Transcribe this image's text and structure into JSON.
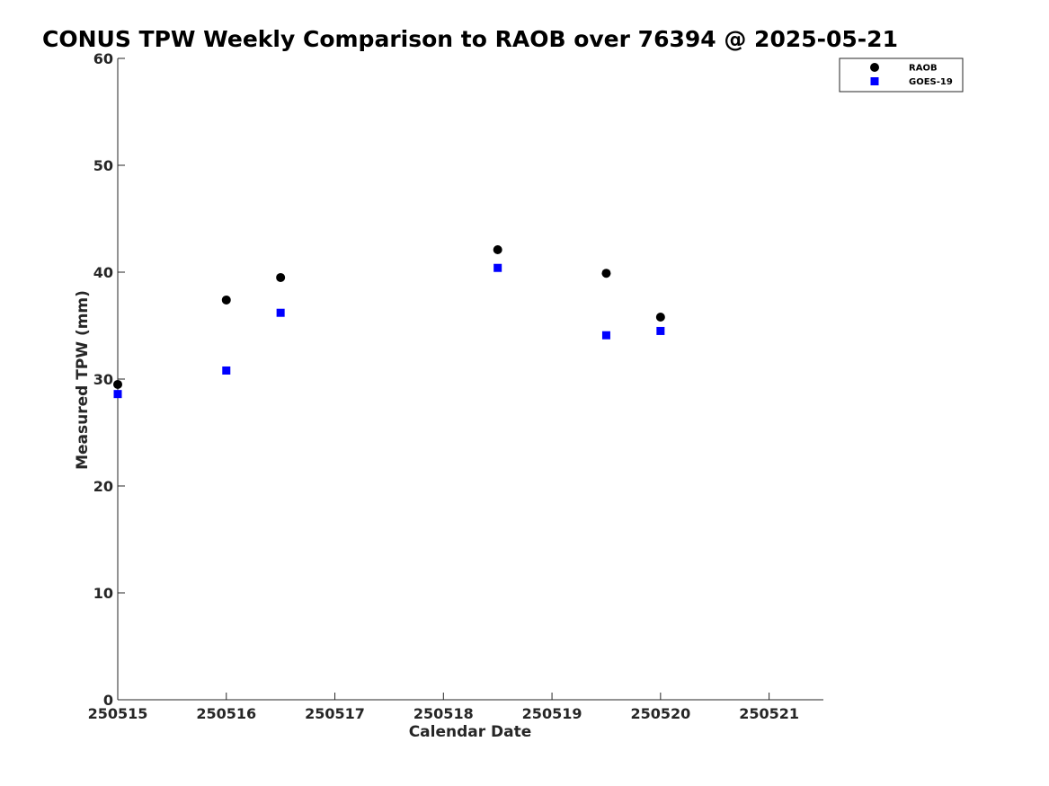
{
  "chart_data": {
    "type": "scatter",
    "title": "CONUS TPW Weekly Comparison to RAOB over 76394 @ 2025-05-21",
    "xlabel": "Calendar Date",
    "ylabel": "Measured TPW (mm)",
    "xlim": [
      250515,
      250521.5
    ],
    "ylim": [
      0,
      60
    ],
    "x_ticks": [
      250515,
      250516,
      250517,
      250518,
      250519,
      250520,
      250521
    ],
    "x_tick_labels": [
      "250515",
      "250516",
      "250517",
      "250518",
      "250519",
      "250520",
      "250521"
    ],
    "y_ticks": [
      0,
      10,
      20,
      30,
      40,
      50,
      60
    ],
    "y_tick_labels": [
      "0",
      "10",
      "20",
      "30",
      "40",
      "50",
      "60"
    ],
    "grid": false,
    "legend_position": "top-right",
    "series": [
      {
        "name": "RAOB",
        "marker": "circle",
        "color": "#000000",
        "points": [
          {
            "x": 250515.0,
            "y": 29.5
          },
          {
            "x": 250516.0,
            "y": 37.4
          },
          {
            "x": 250516.5,
            "y": 39.5
          },
          {
            "x": 250518.5,
            "y": 42.1
          },
          {
            "x": 250519.5,
            "y": 39.9
          },
          {
            "x": 250520.0,
            "y": 35.8
          }
        ]
      },
      {
        "name": "GOES-19",
        "marker": "square",
        "color": "#0000ff",
        "points": [
          {
            "x": 250515.0,
            "y": 28.6
          },
          {
            "x": 250516.0,
            "y": 30.8
          },
          {
            "x": 250516.5,
            "y": 36.2
          },
          {
            "x": 250518.5,
            "y": 40.4
          },
          {
            "x": 250519.5,
            "y": 34.1
          },
          {
            "x": 250520.0,
            "y": 34.5
          }
        ]
      }
    ]
  }
}
